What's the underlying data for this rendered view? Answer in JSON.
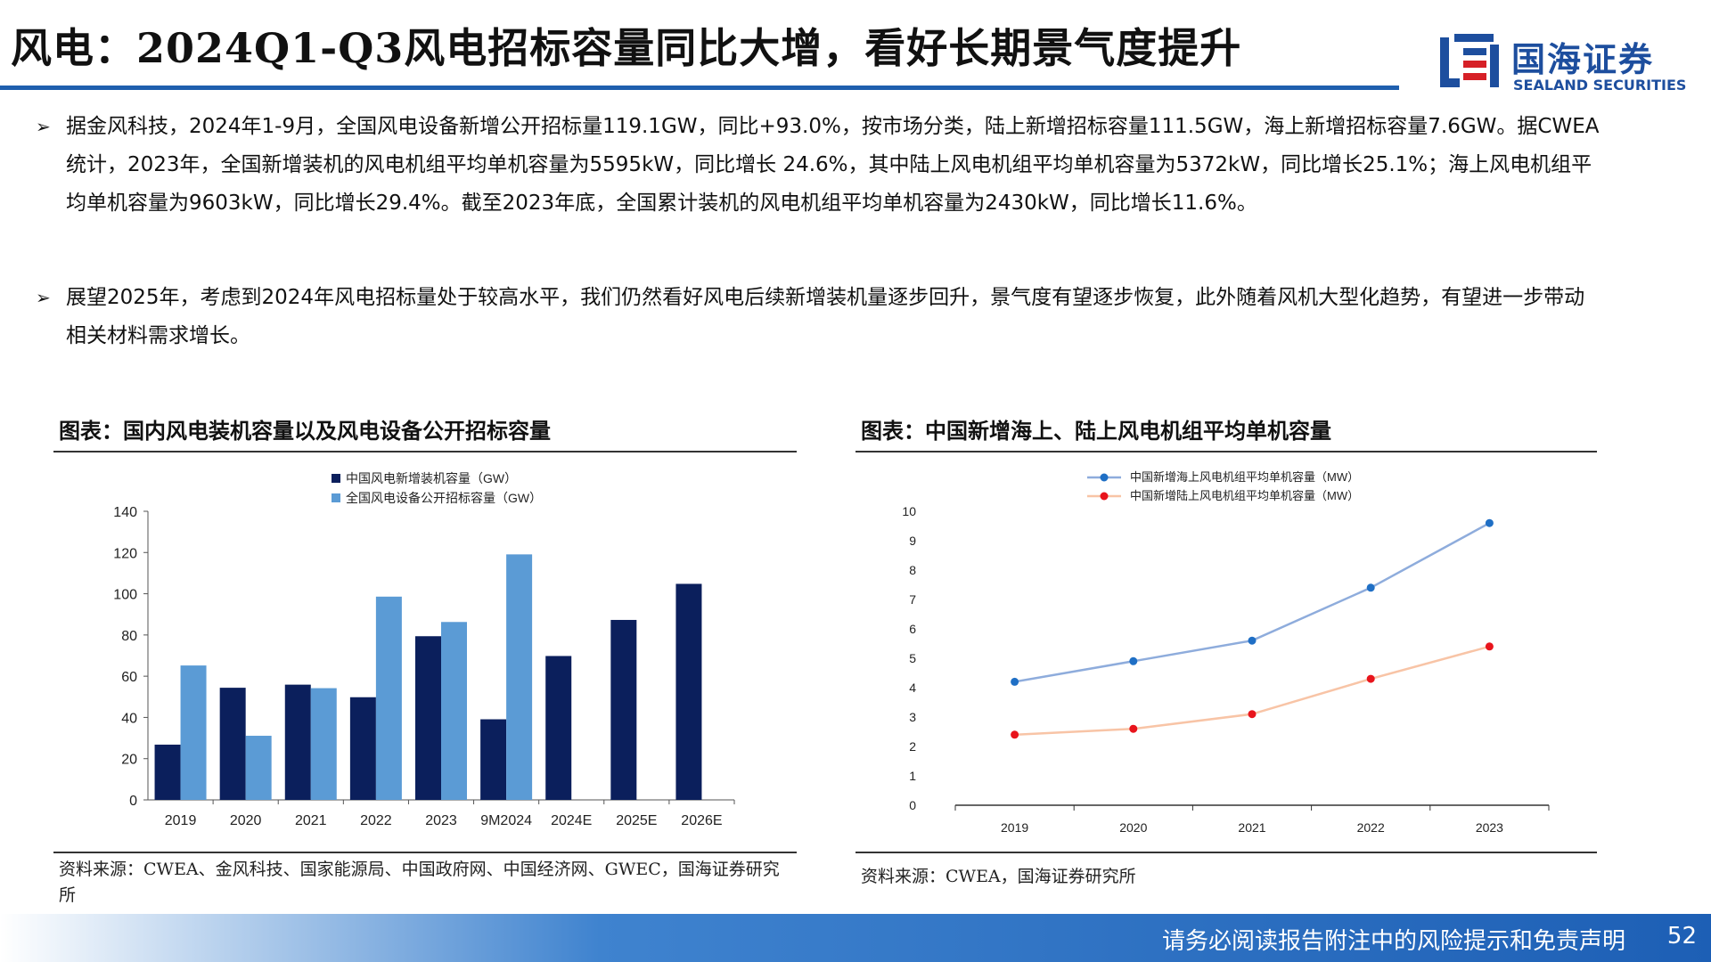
{
  "header": {
    "title": "风电：2024Q1-Q3风电招标容量同比大增，看好长期景气度提升",
    "logo_cn": "国海证券",
    "logo_en": "SEALAND SECURITIES"
  },
  "bullets": [
    "据金风科技，2024年1-9月，全国风电设备新增公开招标量119.1GW，同比+93.0%，按市场分类，陆上新增招标容量111.5GW，海上新增招标容量7.6GW。据CWEA统计，2023年，全国新增装机的风电机组平均单机容量为5595kW，同比增长 24.6%，其中陆上风电机组平均单机容量为5372kW，同比增长25.1%；海上风电机组平均单机容量为9603kW，同比增长29.4%。截至2023年底，全国累计装机的风电机组平均单机容量为2430kW，同比增长11.6%。",
    "展望2025年，考虑到2024年风电招标量处于较高水平，我们仍然看好风电后续新增装机量逐步回升，景气度有望逐步恢复，此外随着风机大型化趋势，有望进一步带动相关材料需求增长。"
  ],
  "bullet_marker": "➢",
  "left_chart": {
    "heading": "图表：国内风电装机容量以及风电设备公开招标容量",
    "source": "资料来源：CWEA、金风科技、国家能源局、中国政府网、中国经济网、GWEC，国海证券研究所"
  },
  "right_chart": {
    "heading": "图表：中国新增海上、陆上风电机组平均单机容量",
    "source": "资料来源：CWEA，国海证券研究所"
  },
  "chart_data": [
    {
      "type": "bar",
      "categories": [
        "2019",
        "2020",
        "2021",
        "2022",
        "2023",
        "9M2024",
        "2024E",
        "2025E",
        "2026E"
      ],
      "series": [
        {
          "name": "中国风电新增装机容量（GW）",
          "color": "#0b1f5c",
          "values": [
            26.8,
            54.4,
            55.9,
            49.8,
            79.4,
            39.1,
            69.8,
            87.3,
            104.8
          ]
        },
        {
          "name": "全国风电设备公开招标容量（GW）",
          "color": "#5b9bd5",
          "values": [
            65.2,
            31.1,
            54.2,
            98.6,
            86.3,
            119.1,
            null,
            null,
            null
          ]
        }
      ],
      "ylim": [
        0,
        140
      ],
      "yticks": [
        0,
        20,
        40,
        60,
        80,
        100,
        120,
        140
      ],
      "legend": "top"
    },
    {
      "type": "line",
      "x": [
        "2019",
        "2020",
        "2021",
        "2022",
        "2023"
      ],
      "series": [
        {
          "name": "中国新增海上风电机组平均单机容量（MW）",
          "color": "#8eacdc",
          "marker": "#1f6fc5",
          "values": [
            4.2,
            4.9,
            5.6,
            7.4,
            9.6
          ]
        },
        {
          "name": "中国新增陆上风电机组平均单机容量（MW）",
          "color": "#f8c4a6",
          "marker": "#e8141c",
          "values": [
            2.4,
            2.6,
            3.1,
            4.3,
            5.4
          ]
        }
      ],
      "ylim": [
        0,
        10
      ],
      "yticks": [
        0,
        1,
        2,
        3,
        4,
        5,
        6,
        7,
        8,
        9,
        10
      ],
      "legend": "top"
    }
  ],
  "footer": {
    "disclaimer": "请务必阅读报告附注中的风险提示和免责声明",
    "page": "52"
  }
}
